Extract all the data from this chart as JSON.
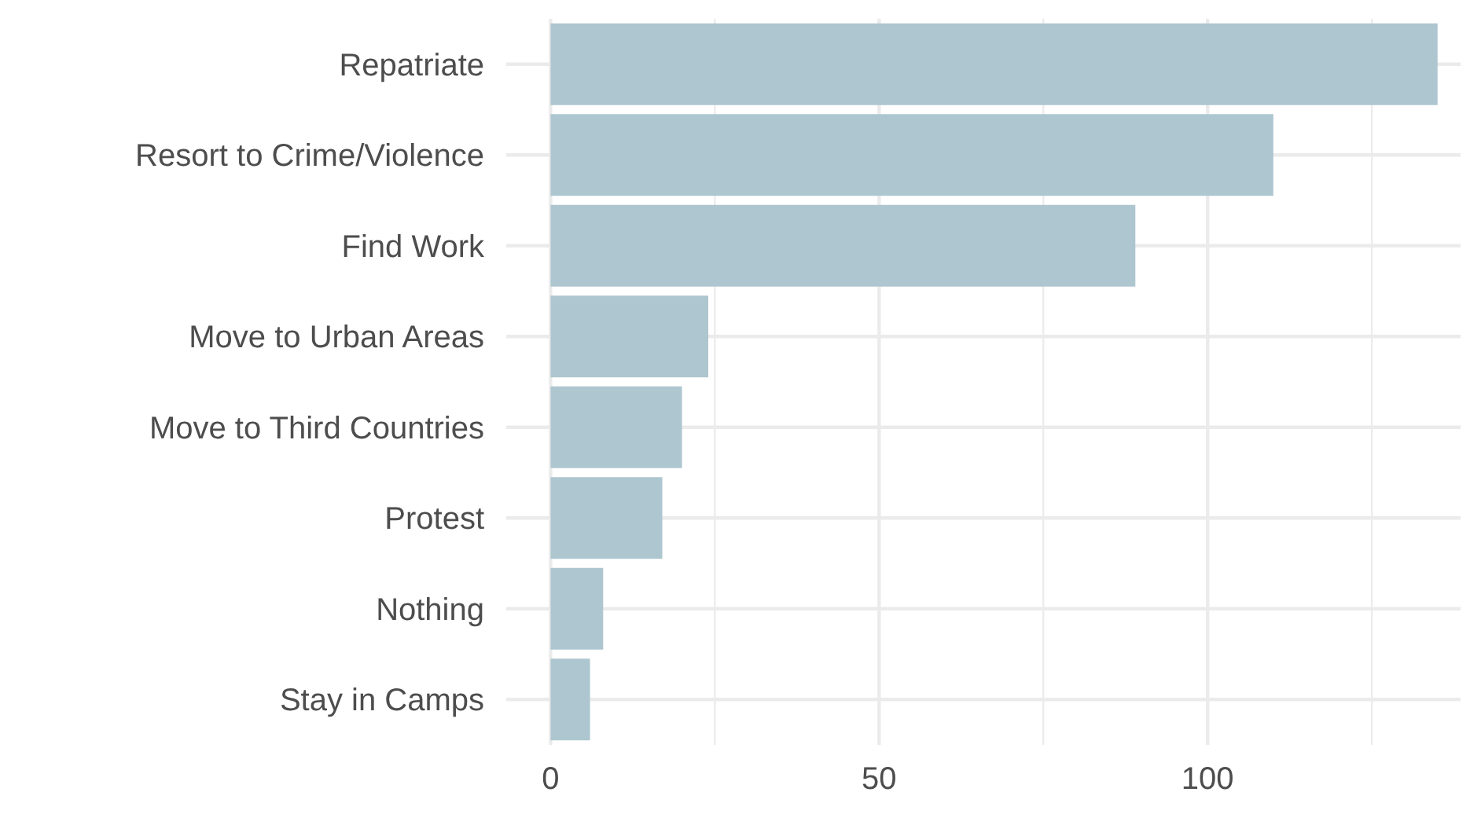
{
  "chart_data": {
    "type": "bar",
    "orientation": "horizontal",
    "categories": [
      "Repatriate",
      "Resort to Crime/Violence",
      "Find Work",
      "Move to Urban Areas",
      "Move to Third Countries",
      "Protest",
      "Nothing",
      "Stay in Camps"
    ],
    "values": [
      135,
      110,
      89,
      24,
      20,
      17,
      8,
      6
    ],
    "color": "#adc6cf",
    "xlim": [
      -6.75,
      138.5
    ],
    "xticks": [
      0,
      {
        "value": 25,
        "label": null
      },
      50,
      {
        "value": 75,
        "label": null
      },
      100,
      {
        "value": 125,
        "label": null
      }
    ],
    "grid": true
  }
}
